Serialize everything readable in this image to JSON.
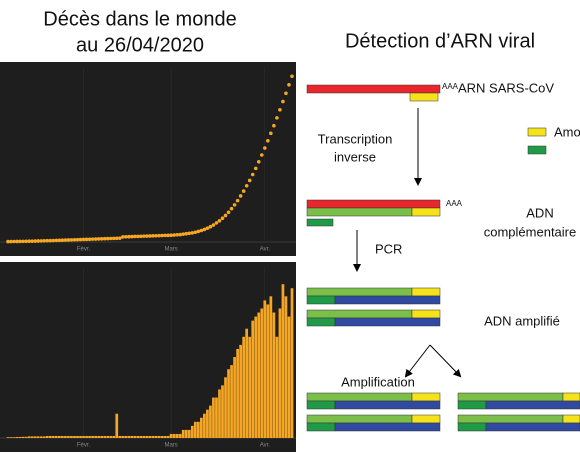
{
  "header": {
    "left_title": [
      "Décès dans le monde",
      "au 26/04/2020"
    ],
    "right_title": "Détection d’ARN viral"
  },
  "chart_data": [
    {
      "type": "line",
      "color": "#f5a623",
      "categories": [
        null,
        null,
        null,
        null,
        null,
        null,
        null,
        null,
        null,
        null,
        null,
        null,
        null,
        null,
        null,
        null,
        null,
        null,
        null,
        null,
        null,
        null,
        null,
        null,
        null,
        "Févr.",
        null,
        null,
        null,
        null,
        null,
        null,
        null,
        null,
        null,
        null,
        null,
        null,
        null,
        null,
        null,
        null,
        null,
        null,
        null,
        null,
        null,
        null,
        null,
        null,
        null,
        null,
        null,
        null,
        "Mars",
        null,
        null,
        null,
        null,
        null,
        null,
        null,
        null,
        null,
        null,
        null,
        null,
        null,
        null,
        null,
        null,
        null,
        null,
        null,
        null,
        null,
        null,
        null,
        null,
        null,
        null,
        null,
        null,
        null,
        null,
        "Avr.",
        null,
        null,
        null,
        null,
        null,
        null,
        null,
        null,
        null
      ],
      "values": [
        200,
        220,
        240,
        260,
        280,
        300,
        330,
        360,
        400,
        440,
        480,
        520,
        560,
        600,
        650,
        700,
        750,
        800,
        850,
        900,
        950,
        1000,
        1050,
        1100,
        1150,
        1200,
        1250,
        1300,
        1350,
        1400,
        1450,
        1500,
        1550,
        1600,
        1650,
        1700,
        1750,
        1800,
        2400,
        2450,
        2500,
        2550,
        2600,
        2650,
        2700,
        2750,
        2800,
        2850,
        2900,
        2950,
        3000,
        3050,
        3100,
        3150,
        3200,
        3300,
        3400,
        3500,
        3700,
        3900,
        4100,
        4300,
        4600,
        5000,
        5400,
        5900,
        6500,
        7200,
        8000,
        9000,
        10000,
        11200,
        12500,
        14000,
        15700,
        17500,
        19500,
        21700,
        24000,
        26500,
        29000,
        31800,
        34700,
        37800,
        41000,
        44300,
        47700,
        51200,
        54800,
        58500,
        62300,
        66200,
        70100,
        74100,
        78100
      ],
      "ylim": [
        0,
        82000
      ]
    },
    {
      "type": "bar",
      "color": "#f5a623",
      "categories": [
        null,
        null,
        null,
        null,
        null,
        null,
        null,
        null,
        null,
        null,
        null,
        null,
        null,
        null,
        null,
        null,
        null,
        null,
        null,
        null,
        null,
        null,
        null,
        null,
        null,
        "Févr.",
        null,
        null,
        null,
        null,
        null,
        null,
        null,
        null,
        null,
        null,
        null,
        null,
        null,
        null,
        null,
        null,
        null,
        null,
        null,
        null,
        null,
        null,
        null,
        null,
        null,
        null,
        null,
        null,
        "Mars",
        null,
        null,
        null,
        null,
        null,
        null,
        null,
        null,
        null,
        null,
        null,
        null,
        null,
        null,
        null,
        null,
        null,
        null,
        null,
        null,
        null,
        null,
        null,
        null,
        null,
        null,
        null,
        null,
        null,
        null,
        "Avr.",
        null,
        null,
        null,
        null,
        null,
        null,
        null,
        null,
        null
      ],
      "values": [
        20,
        20,
        20,
        25,
        25,
        30,
        30,
        40,
        40,
        40,
        40,
        40,
        40,
        50,
        50,
        50,
        50,
        50,
        50,
        50,
        50,
        50,
        50,
        50,
        50,
        50,
        50,
        50,
        50,
        50,
        50,
        50,
        50,
        50,
        50,
        50,
        600,
        50,
        50,
        50,
        50,
        50,
        50,
        50,
        50,
        50,
        50,
        50,
        50,
        50,
        50,
        50,
        50,
        50,
        100,
        100,
        100,
        100,
        200,
        200,
        200,
        300,
        400,
        400,
        500,
        600,
        700,
        800,
        1000,
        1000,
        1200,
        1300,
        1500,
        1700,
        1800,
        2000,
        2200,
        2300,
        2500,
        2700,
        2500,
        2900,
        3000,
        3100,
        3200,
        3400,
        3300,
        3500,
        3100,
        2500,
        3200,
        3800,
        3500,
        3000,
        3700
      ],
      "ylim": [
        0,
        4200
      ]
    }
  ],
  "diagram": {
    "rna_tail": "AAA",
    "rna_label": "ARN SARS-CoV",
    "step1": [
      "Transcription",
      "inverse"
    ],
    "legend_primers": "Amorces",
    "cdna_tail": "AAA",
    "cdna_label": [
      "ADN",
      "complémentaire"
    ],
    "step2": "PCR",
    "amplified_label": "ADN amplifié",
    "step3": "Amplification"
  }
}
